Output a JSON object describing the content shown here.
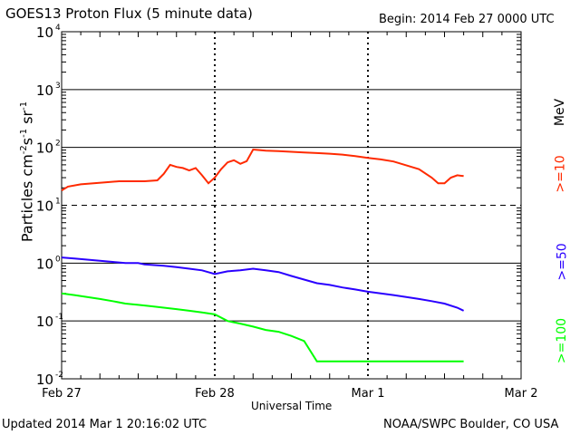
{
  "header": {
    "title": "GOES13 Proton Flux (5 minute data)",
    "begin": "Begin: 2014 Feb 27 0000 UTC"
  },
  "footer": {
    "updated": "Updated 2014 Mar  1 20:16:02 UTC",
    "source": "NOAA/SWPC Boulder, CO USA"
  },
  "colors": {
    "gt10": "#ff2a00",
    "gt50": "#2a00ff",
    "gt100": "#00ff00",
    "axis": "#000000"
  },
  "chart_data": {
    "type": "line",
    "title": "GOES13 Proton Flux (5 minute data)",
    "xlabel": "Universal Time",
    "ylabel_parts": {
      "a": "Particles cm",
      "b": "-2",
      "c": "s",
      "d": "-1",
      "e": "sr",
      "f": "-1"
    },
    "yscale": "log",
    "ylim": [
      0.01,
      10000
    ],
    "xlim": [
      0,
      72
    ],
    "x_unit": "hours since Feb 27 0000 UTC",
    "x_ticks": [
      "Feb 27",
      "Feb 28",
      "Mar 1",
      "Mar 2"
    ],
    "y_ticks": [
      {
        "base": "10",
        "exp": "4"
      },
      {
        "base": "10",
        "exp": "3"
      },
      {
        "base": "10",
        "exp": "2"
      },
      {
        "base": "10",
        "exp": "1"
      },
      {
        "base": "10",
        "exp": "0"
      },
      {
        "base": "10",
        "exp": "-1"
      },
      {
        "base": "10",
        "exp": "-2"
      }
    ],
    "energy_unit": "MeV",
    "series": [
      {
        "name": ">=10",
        "color": "#ff2a00",
        "points": [
          [
            0,
            18
          ],
          [
            1,
            21
          ],
          [
            3,
            23
          ],
          [
            5,
            24
          ],
          [
            7,
            25
          ],
          [
            9,
            26
          ],
          [
            11,
            26
          ],
          [
            13,
            26
          ],
          [
            15,
            27
          ],
          [
            16,
            35
          ],
          [
            17,
            50
          ],
          [
            18,
            46
          ],
          [
            19,
            44
          ],
          [
            20,
            40
          ],
          [
            21,
            44
          ],
          [
            22,
            33
          ],
          [
            23,
            24
          ],
          [
            24,
            30
          ],
          [
            25,
            42
          ],
          [
            26,
            55
          ],
          [
            27,
            60
          ],
          [
            28,
            52
          ],
          [
            29,
            58
          ],
          [
            30,
            92
          ],
          [
            31,
            90
          ],
          [
            32,
            88
          ],
          [
            34,
            86
          ],
          [
            36,
            84
          ],
          [
            38,
            82
          ],
          [
            40,
            80
          ],
          [
            42,
            78
          ],
          [
            44,
            75
          ],
          [
            46,
            71
          ],
          [
            48,
            66
          ],
          [
            50,
            62
          ],
          [
            52,
            57
          ],
          [
            54,
            49
          ],
          [
            56,
            42
          ],
          [
            58,
            30
          ],
          [
            59,
            24
          ],
          [
            60,
            24
          ],
          [
            61,
            30
          ],
          [
            62,
            33
          ],
          [
            63,
            32
          ]
        ]
      },
      {
        "name": ">=50",
        "color": "#2a00ff",
        "points": [
          [
            0,
            1.25
          ],
          [
            2,
            1.2
          ],
          [
            4,
            1.15
          ],
          [
            6,
            1.1
          ],
          [
            8,
            1.05
          ],
          [
            10,
            1.0
          ],
          [
            12,
            1.0
          ],
          [
            13,
            0.95
          ],
          [
            16,
            0.9
          ],
          [
            18,
            0.85
          ],
          [
            20,
            0.8
          ],
          [
            22,
            0.75
          ],
          [
            24,
            0.65
          ],
          [
            26,
            0.72
          ],
          [
            28,
            0.75
          ],
          [
            30,
            0.8
          ],
          [
            32,
            0.75
          ],
          [
            34,
            0.7
          ],
          [
            36,
            0.6
          ],
          [
            38,
            0.52
          ],
          [
            40,
            0.45
          ],
          [
            42,
            0.42
          ],
          [
            44,
            0.38
          ],
          [
            46,
            0.35
          ],
          [
            48,
            0.32
          ],
          [
            50,
            0.3
          ],
          [
            52,
            0.28
          ],
          [
            54,
            0.26
          ],
          [
            56,
            0.24
          ],
          [
            58,
            0.22
          ],
          [
            60,
            0.2
          ],
          [
            62,
            0.17
          ],
          [
            63,
            0.15
          ]
        ]
      },
      {
        "name": ">=100",
        "color": "#00ff00",
        "points": [
          [
            0,
            0.3
          ],
          [
            2,
            0.28
          ],
          [
            4,
            0.26
          ],
          [
            6,
            0.24
          ],
          [
            8,
            0.22
          ],
          [
            10,
            0.2
          ],
          [
            12,
            0.19
          ],
          [
            14,
            0.18
          ],
          [
            16,
            0.17
          ],
          [
            18,
            0.16
          ],
          [
            20,
            0.15
          ],
          [
            22,
            0.14
          ],
          [
            24,
            0.13
          ],
          [
            26,
            0.1
          ],
          [
            28,
            0.09
          ],
          [
            30,
            0.08
          ],
          [
            32,
            0.07
          ],
          [
            34,
            0.065
          ],
          [
            36,
            0.055
          ],
          [
            38,
            0.045
          ],
          [
            40,
            0.02
          ],
          [
            42,
            0.02
          ],
          [
            44,
            0.02
          ],
          [
            46,
            0.02
          ],
          [
            48,
            0.02
          ],
          [
            50,
            0.02
          ],
          [
            52,
            0.02
          ],
          [
            54,
            0.02
          ],
          [
            56,
            0.02
          ],
          [
            58,
            0.02
          ],
          [
            60,
            0.02
          ],
          [
            62,
            0.02
          ],
          [
            63,
            0.02
          ]
        ]
      }
    ]
  }
}
